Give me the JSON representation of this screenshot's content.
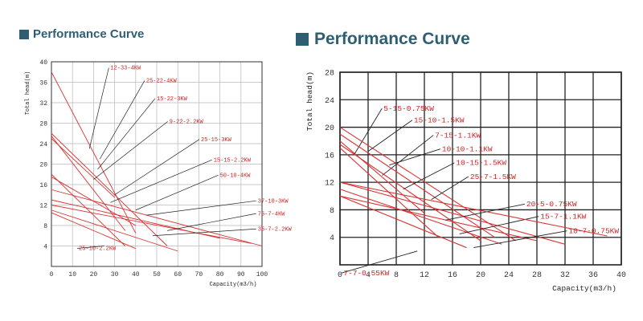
{
  "panels": [
    {
      "title": "Performance Curve",
      "colors": {
        "title": "#2f5e73",
        "curve": "#d93434",
        "leader": "#222222",
        "grid": "#b8b8b8",
        "label": "#d02020"
      },
      "chart_data": {
        "type": "line",
        "xlabel": "Capacity(m3/h)",
        "ylabel": "Total head(m)",
        "xlim": [
          0,
          100
        ],
        "ylim": [
          0,
          40
        ],
        "xticks": [
          0,
          10,
          20,
          30,
          40,
          50,
          60,
          70,
          80,
          90,
          100
        ],
        "yticks": [
          4,
          8,
          12,
          16,
          20,
          24,
          28,
          32,
          36,
          40
        ],
        "grid": true,
        "series": [
          {
            "name": "12-33-4KW",
            "x": [
              0,
              40
            ],
            "y": [
              38,
              6.5
            ],
            "label_pos": [
              28,
              38.5
            ],
            "leader_from": [
              18,
              23
            ]
          },
          {
            "name": "25-22-4KW",
            "x": [
              0,
              55
            ],
            "y": [
              26,
              4
            ],
            "label_pos": [
              45,
              36
            ],
            "leader_from": [
              23,
              21
            ]
          },
          {
            "name": "15-22-3KW",
            "x": [
              0,
              35
            ],
            "y": [
              25.5,
              7
            ],
            "label_pos": [
              50,
              32.5
            ],
            "leader_from": [
              22,
              19
            ]
          },
          {
            "name": "9-22-2.2KW",
            "x": [
              0,
              30
            ],
            "y": [
              25,
              13.5
            ],
            "label_pos": [
              56,
              28
            ],
            "leader_from": [
              20,
              17
            ]
          },
          {
            "name": "25-15-3KW",
            "x": [
              0,
              35
            ],
            "y": [
              18,
              4
            ],
            "label_pos": [
              71,
              24.5
            ],
            "leader_from": [
              30,
              14
            ]
          },
          {
            "name": "15-15-2.2KW",
            "x": [
              0,
              40
            ],
            "y": [
              17.5,
              8
            ],
            "label_pos": [
              77,
              20.5
            ],
            "leader_from": [
              28,
              12.5
            ]
          },
          {
            "name": "50-10-4KW",
            "x": [
              0,
              100
            ],
            "y": [
              15,
              4
            ],
            "label_pos": [
              80,
              17.5
            ],
            "leader_from": [
              40,
              11
            ]
          },
          {
            "name": "37-10-3KW",
            "x": [
              0,
              80
            ],
            "y": [
              13,
              5.5
            ],
            "label_pos": [
              98,
              12.5
            ],
            "leader_from": [
              45,
              10
            ]
          },
          {
            "name": "75-7-4KW",
            "x": [
              0,
              95
            ],
            "y": [
              12,
              4.5
            ],
            "label_pos": [
              98,
              10
            ],
            "leader_from": [
              55,
              7
            ]
          },
          {
            "name": "35-7-2.2KW",
            "x": [
              0,
              60
            ],
            "y": [
              11,
              3
            ],
            "label_pos": [
              98,
              7
            ],
            "leader_from": [
              48,
              6
            ]
          },
          {
            "name": "25-10-2.2KW",
            "x": [
              0,
              40
            ],
            "y": [
              10.5,
              3.5
            ],
            "label_pos": [
              13,
              3.2
            ],
            "leader_from": [
              25,
              4
            ]
          }
        ]
      }
    },
    {
      "title": "Performance Curve",
      "colors": {
        "title": "#2f5e73",
        "curve": "#d93434",
        "leader": "#222222",
        "grid": "#222222",
        "label": "#d02020"
      },
      "chart_data": {
        "type": "line",
        "xlabel": "Capacity(m3/h)",
        "ylabel": "Total head(m)",
        "xlim": [
          0,
          40
        ],
        "ylim": [
          0,
          28
        ],
        "xticks": [
          0,
          4,
          8,
          12,
          16,
          20,
          24,
          28,
          32,
          36,
          40
        ],
        "yticks": [
          4,
          8,
          12,
          16,
          20,
          24,
          28
        ],
        "grid": true,
        "series": [
          {
            "name": "5-15-0.75KW",
            "x": [
              0,
              12
            ],
            "y": [
              18,
              7.5
            ],
            "label_pos": [
              6.2,
              22.4
            ],
            "leader_from": [
              2,
              16
            ]
          },
          {
            "name": "15-10-1.5KW",
            "x": [
              0,
              25
            ],
            "y": [
              20,
              3.5
            ],
            "label_pos": [
              10.5,
              20.7
            ],
            "leader_from": [
              4,
              16.5
            ]
          },
          {
            "name": "7-15-1.1KW",
            "x": [
              0,
              14
            ],
            "y": [
              17,
              4
            ],
            "label_pos": [
              13.5,
              18.5
            ],
            "leader_from": [
              6,
              13
            ]
          },
          {
            "name": "10-10-1.1KW",
            "x": [
              0,
              20
            ],
            "y": [
              17.5,
              3.5
            ],
            "label_pos": [
              14.5,
              16.5
            ],
            "leader_from": [
              7,
              14.5
            ]
          },
          {
            "name": "10-15-1.5KW",
            "x": [
              0,
              22
            ],
            "y": [
              19,
              4
            ],
            "label_pos": [
              16.5,
              14.5
            ],
            "leader_from": [
              9,
              11
            ]
          },
          {
            "name": "25-7-1.5KW",
            "x": [
              0,
              32
            ],
            "y": [
              12,
              3
            ],
            "label_pos": [
              18.5,
              12.5
            ],
            "leader_from": [
              13,
              9.5
            ]
          },
          {
            "name": "20-5-0.75KW",
            "x": [
              0,
              28
            ],
            "y": [
              10,
              3.5
            ],
            "label_pos": [
              26.5,
              8.5
            ],
            "leader_from": [
              15,
              6.5
            ]
          },
          {
            "name": "15-7-1.1KW",
            "x": [
              0,
              23
            ],
            "y": [
              11,
              3
            ],
            "label_pos": [
              28.5,
              6.7
            ],
            "leader_from": [
              17,
              4.5
            ]
          },
          {
            "name": "10-7-0.75KW",
            "x": [
              0,
              38
            ],
            "y": [
              12,
              4.2
            ],
            "label_pos": [
              32.5,
              4.6
            ],
            "leader_from": [
              19,
              2.5
            ]
          },
          {
            "name": "7-7-0.55KW",
            "x": [
              0,
              18
            ],
            "y": [
              10,
              2.5
            ],
            "label_pos": [
              0.5,
              -1.5
            ],
            "leader_from": [
              11,
              2
            ]
          }
        ]
      }
    }
  ]
}
